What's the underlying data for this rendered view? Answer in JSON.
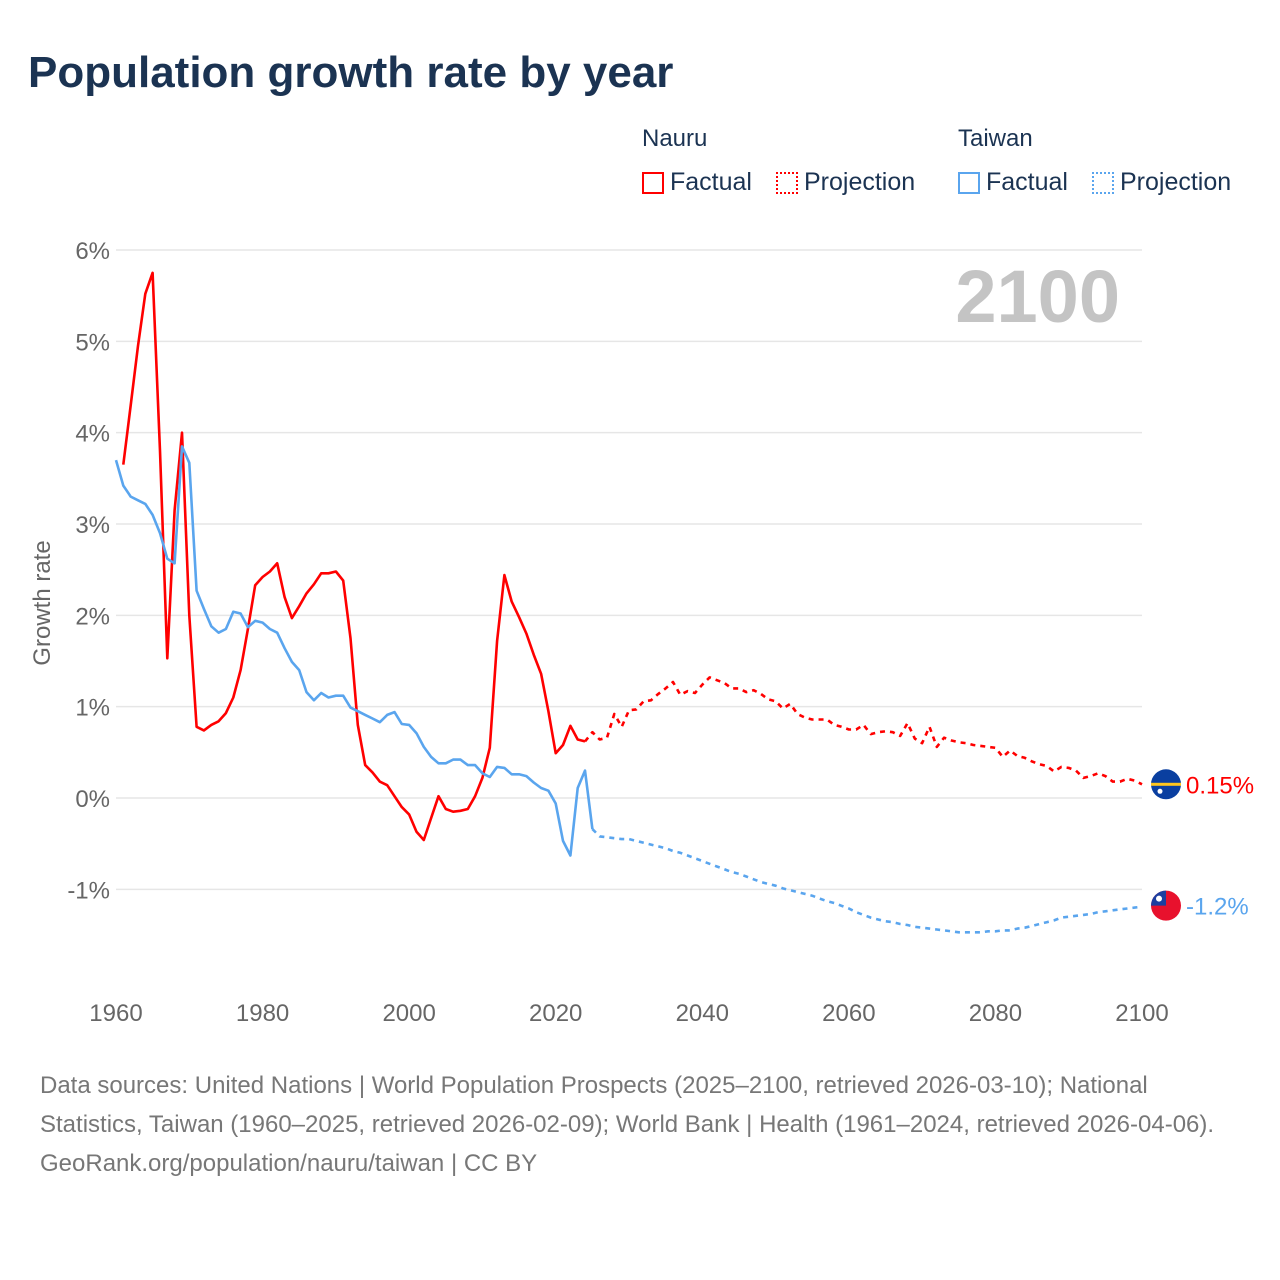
{
  "title": "Population growth rate by year",
  "legend": {
    "groups": [
      {
        "name": "Nauru",
        "color": "#ff0000",
        "factual": "Factual",
        "projection": "Projection"
      },
      {
        "name": "Taiwan",
        "color": "#5aa5ee",
        "factual": "Factual",
        "projection": "Projection"
      }
    ]
  },
  "year_watermark": "2100",
  "footer": {
    "sources": "Data sources: United Nations | World Population Prospects (2025–2100, retrieved 2026-03-10); National Statistics, Taiwan (1960–2025, retrieved 2026-02-09); World Bank | Health (1961–2024, retrieved 2026-04-06).",
    "credit": "GeoRank.org/population/nauru/taiwan | CC BY"
  },
  "chart_data": {
    "type": "line",
    "title": "Population growth rate by year",
    "xlabel": "",
    "ylabel": "Growth rate",
    "xlim": [
      1960,
      2100
    ],
    "ylim": [
      -2,
      6
    ],
    "xticks": [
      "1960",
      "1980",
      "2000",
      "2020",
      "2040",
      "2060",
      "2080",
      "2100"
    ],
    "yticks": [
      {
        "v": 6,
        "label": "6%"
      },
      {
        "v": 5,
        "label": "5%"
      },
      {
        "v": 4,
        "label": "4%"
      },
      {
        "v": 3,
        "label": "3%"
      },
      {
        "v": 2,
        "label": "2%"
      },
      {
        "v": 1,
        "label": "1%"
      },
      {
        "v": 0,
        "label": "0%"
      },
      {
        "v": -1,
        "label": "-1%"
      }
    ],
    "grid": true,
    "series": [
      {
        "name": "Nauru Factual",
        "country": "Nauru",
        "color": "#ff0000",
        "dashed": false,
        "start": 1961,
        "values": [
          3.65,
          4.3,
          4.95,
          5.52,
          5.75,
          3.8,
          1.53,
          3.15,
          4.0,
          2.0,
          0.78,
          0.74,
          0.8,
          0.84,
          0.93,
          1.1,
          1.4,
          1.85,
          2.33,
          2.42,
          2.48,
          2.57,
          2.2,
          1.97,
          2.1,
          2.24,
          2.34,
          2.46,
          2.46,
          2.48,
          2.38,
          1.75,
          0.8,
          0.36,
          0.28,
          0.18,
          0.14,
          0.02,
          -0.1,
          -0.18,
          -0.37,
          -0.46,
          -0.22,
          0.02,
          -0.12,
          -0.15,
          -0.14,
          -0.12,
          0.02,
          0.22,
          0.55,
          1.72,
          2.44,
          2.15,
          1.98,
          1.8,
          1.57,
          1.36,
          0.95,
          0.49,
          0.58,
          0.79,
          0.64,
          0.62
        ]
      },
      {
        "name": "Nauru Projection",
        "country": "Nauru",
        "color": "#ff0000",
        "dashed": true,
        "start": 2024,
        "values": [
          0.62,
          0.72,
          0.64,
          0.66,
          0.92,
          0.78,
          0.96,
          0.97,
          1.06,
          1.07,
          1.14,
          1.2,
          1.27,
          1.13,
          1.17,
          1.15,
          1.24,
          1.32,
          1.29,
          1.26,
          1.2,
          1.2,
          1.16,
          1.18,
          1.14,
          1.08,
          1.06,
          0.98,
          1.03,
          0.92,
          0.88,
          0.86,
          0.86,
          0.86,
          0.8,
          0.78,
          0.75,
          0.75,
          0.8,
          0.7,
          0.72,
          0.73,
          0.72,
          0.68,
          0.82,
          0.65,
          0.6,
          0.78,
          0.56,
          0.66,
          0.63,
          0.61,
          0.6,
          0.58,
          0.57,
          0.56,
          0.55,
          0.45,
          0.52,
          0.46,
          0.44,
          0.4,
          0.37,
          0.35,
          0.29,
          0.34,
          0.33,
          0.3,
          0.22,
          0.24,
          0.27,
          0.24,
          0.18,
          0.18,
          0.21,
          0.19,
          0.15
        ]
      },
      {
        "name": "Taiwan Factual",
        "country": "Taiwan",
        "color": "#5aa5ee",
        "dashed": false,
        "start": 1960,
        "values": [
          3.7,
          3.42,
          3.3,
          3.26,
          3.22,
          3.1,
          2.9,
          2.62,
          2.57,
          3.85,
          3.67,
          2.27,
          2.07,
          1.88,
          1.81,
          1.85,
          2.04,
          2.02,
          1.87,
          1.94,
          1.92,
          1.85,
          1.81,
          1.64,
          1.49,
          1.4,
          1.16,
          1.07,
          1.15,
          1.1,
          1.12,
          1.12,
          0.99,
          0.95,
          0.91,
          0.87,
          0.83,
          0.91,
          0.94,
          0.81,
          0.8,
          0.71,
          0.56,
          0.45,
          0.38,
          0.38,
          0.42,
          0.42,
          0.36,
          0.36,
          0.27,
          0.23,
          0.34,
          0.33,
          0.26,
          0.26,
          0.24,
          0.17,
          0.11,
          0.08,
          -0.06,
          -0.47,
          -0.63,
          0.11,
          0.3,
          -0.34
        ]
      },
      {
        "name": "Taiwan Projection",
        "country": "Taiwan",
        "color": "#5aa5ee",
        "dashed": true,
        "start": 2025,
        "values": [
          -0.34,
          -0.42,
          -0.43,
          -0.44,
          -0.45,
          -0.45,
          -0.47,
          -0.49,
          -0.51,
          -0.53,
          -0.55,
          -0.58,
          -0.6,
          -0.63,
          -0.66,
          -0.69,
          -0.72,
          -0.75,
          -0.78,
          -0.81,
          -0.83,
          -0.86,
          -0.89,
          -0.92,
          -0.94,
          -0.96,
          -0.99,
          -1.01,
          -1.03,
          -1.05,
          -1.07,
          -1.1,
          -1.13,
          -1.15,
          -1.18,
          -1.21,
          -1.25,
          -1.28,
          -1.31,
          -1.33,
          -1.35,
          -1.36,
          -1.38,
          -1.39,
          -1.41,
          -1.42,
          -1.43,
          -1.44,
          -1.45,
          -1.46,
          -1.47,
          -1.47,
          -1.47,
          -1.47,
          -1.46,
          -1.46,
          -1.45,
          -1.45,
          -1.43,
          -1.42,
          -1.4,
          -1.38,
          -1.36,
          -1.34,
          -1.31,
          -1.3,
          -1.29,
          -1.28,
          -1.27,
          -1.25,
          -1.24,
          -1.23,
          -1.22,
          -1.21,
          -1.2,
          -1.19
        ]
      }
    ],
    "end_labels": [
      {
        "country": "Nauru",
        "label": "0.15%",
        "value": 0.15,
        "color": "#ff0000"
      },
      {
        "country": "Taiwan",
        "label": "-1.2%",
        "value": -1.2,
        "color": "#5aa5ee"
      }
    ]
  }
}
